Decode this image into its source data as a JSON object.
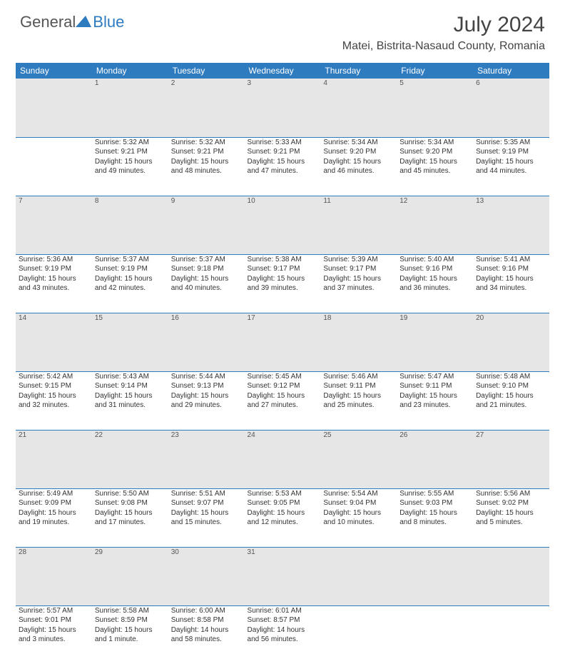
{
  "brand": {
    "general": "General",
    "blue": "Blue"
  },
  "title": "July 2024",
  "location": "Matei, Bistrita-Nasaud County, Romania",
  "colors": {
    "header_bg": "#2f7bbf",
    "header_text": "#ffffff",
    "daynum_bg": "#e6e6e6",
    "border": "#2f7bbf",
    "body_text": "#333333"
  },
  "weekdays": [
    "Sunday",
    "Monday",
    "Tuesday",
    "Wednesday",
    "Thursday",
    "Friday",
    "Saturday"
  ],
  "weeks": [
    {
      "nums": [
        "",
        "1",
        "2",
        "3",
        "4",
        "5",
        "6"
      ],
      "cells": [
        null,
        {
          "sunrise": "Sunrise: 5:32 AM",
          "sunset": "Sunset: 9:21 PM",
          "day": "Daylight: 15 hours and 49 minutes."
        },
        {
          "sunrise": "Sunrise: 5:32 AM",
          "sunset": "Sunset: 9:21 PM",
          "day": "Daylight: 15 hours and 48 minutes."
        },
        {
          "sunrise": "Sunrise: 5:33 AM",
          "sunset": "Sunset: 9:21 PM",
          "day": "Daylight: 15 hours and 47 minutes."
        },
        {
          "sunrise": "Sunrise: 5:34 AM",
          "sunset": "Sunset: 9:20 PM",
          "day": "Daylight: 15 hours and 46 minutes."
        },
        {
          "sunrise": "Sunrise: 5:34 AM",
          "sunset": "Sunset: 9:20 PM",
          "day": "Daylight: 15 hours and 45 minutes."
        },
        {
          "sunrise": "Sunrise: 5:35 AM",
          "sunset": "Sunset: 9:19 PM",
          "day": "Daylight: 15 hours and 44 minutes."
        }
      ]
    },
    {
      "nums": [
        "7",
        "8",
        "9",
        "10",
        "11",
        "12",
        "13"
      ],
      "cells": [
        {
          "sunrise": "Sunrise: 5:36 AM",
          "sunset": "Sunset: 9:19 PM",
          "day": "Daylight: 15 hours and 43 minutes."
        },
        {
          "sunrise": "Sunrise: 5:37 AM",
          "sunset": "Sunset: 9:19 PM",
          "day": "Daylight: 15 hours and 42 minutes."
        },
        {
          "sunrise": "Sunrise: 5:37 AM",
          "sunset": "Sunset: 9:18 PM",
          "day": "Daylight: 15 hours and 40 minutes."
        },
        {
          "sunrise": "Sunrise: 5:38 AM",
          "sunset": "Sunset: 9:17 PM",
          "day": "Daylight: 15 hours and 39 minutes."
        },
        {
          "sunrise": "Sunrise: 5:39 AM",
          "sunset": "Sunset: 9:17 PM",
          "day": "Daylight: 15 hours and 37 minutes."
        },
        {
          "sunrise": "Sunrise: 5:40 AM",
          "sunset": "Sunset: 9:16 PM",
          "day": "Daylight: 15 hours and 36 minutes."
        },
        {
          "sunrise": "Sunrise: 5:41 AM",
          "sunset": "Sunset: 9:16 PM",
          "day": "Daylight: 15 hours and 34 minutes."
        }
      ]
    },
    {
      "nums": [
        "14",
        "15",
        "16",
        "17",
        "18",
        "19",
        "20"
      ],
      "cells": [
        {
          "sunrise": "Sunrise: 5:42 AM",
          "sunset": "Sunset: 9:15 PM",
          "day": "Daylight: 15 hours and 32 minutes."
        },
        {
          "sunrise": "Sunrise: 5:43 AM",
          "sunset": "Sunset: 9:14 PM",
          "day": "Daylight: 15 hours and 31 minutes."
        },
        {
          "sunrise": "Sunrise: 5:44 AM",
          "sunset": "Sunset: 9:13 PM",
          "day": "Daylight: 15 hours and 29 minutes."
        },
        {
          "sunrise": "Sunrise: 5:45 AM",
          "sunset": "Sunset: 9:12 PM",
          "day": "Daylight: 15 hours and 27 minutes."
        },
        {
          "sunrise": "Sunrise: 5:46 AM",
          "sunset": "Sunset: 9:11 PM",
          "day": "Daylight: 15 hours and 25 minutes."
        },
        {
          "sunrise": "Sunrise: 5:47 AM",
          "sunset": "Sunset: 9:11 PM",
          "day": "Daylight: 15 hours and 23 minutes."
        },
        {
          "sunrise": "Sunrise: 5:48 AM",
          "sunset": "Sunset: 9:10 PM",
          "day": "Daylight: 15 hours and 21 minutes."
        }
      ]
    },
    {
      "nums": [
        "21",
        "22",
        "23",
        "24",
        "25",
        "26",
        "27"
      ],
      "cells": [
        {
          "sunrise": "Sunrise: 5:49 AM",
          "sunset": "Sunset: 9:09 PM",
          "day": "Daylight: 15 hours and 19 minutes."
        },
        {
          "sunrise": "Sunrise: 5:50 AM",
          "sunset": "Sunset: 9:08 PM",
          "day": "Daylight: 15 hours and 17 minutes."
        },
        {
          "sunrise": "Sunrise: 5:51 AM",
          "sunset": "Sunset: 9:07 PM",
          "day": "Daylight: 15 hours and 15 minutes."
        },
        {
          "sunrise": "Sunrise: 5:53 AM",
          "sunset": "Sunset: 9:05 PM",
          "day": "Daylight: 15 hours and 12 minutes."
        },
        {
          "sunrise": "Sunrise: 5:54 AM",
          "sunset": "Sunset: 9:04 PM",
          "day": "Daylight: 15 hours and 10 minutes."
        },
        {
          "sunrise": "Sunrise: 5:55 AM",
          "sunset": "Sunset: 9:03 PM",
          "day": "Daylight: 15 hours and 8 minutes."
        },
        {
          "sunrise": "Sunrise: 5:56 AM",
          "sunset": "Sunset: 9:02 PM",
          "day": "Daylight: 15 hours and 5 minutes."
        }
      ]
    },
    {
      "nums": [
        "28",
        "29",
        "30",
        "31",
        "",
        "",
        ""
      ],
      "cells": [
        {
          "sunrise": "Sunrise: 5:57 AM",
          "sunset": "Sunset: 9:01 PM",
          "day": "Daylight: 15 hours and 3 minutes."
        },
        {
          "sunrise": "Sunrise: 5:58 AM",
          "sunset": "Sunset: 8:59 PM",
          "day": "Daylight: 15 hours and 1 minute."
        },
        {
          "sunrise": "Sunrise: 6:00 AM",
          "sunset": "Sunset: 8:58 PM",
          "day": "Daylight: 14 hours and 58 minutes."
        },
        {
          "sunrise": "Sunrise: 6:01 AM",
          "sunset": "Sunset: 8:57 PM",
          "day": "Daylight: 14 hours and 56 minutes."
        },
        null,
        null,
        null
      ]
    }
  ]
}
